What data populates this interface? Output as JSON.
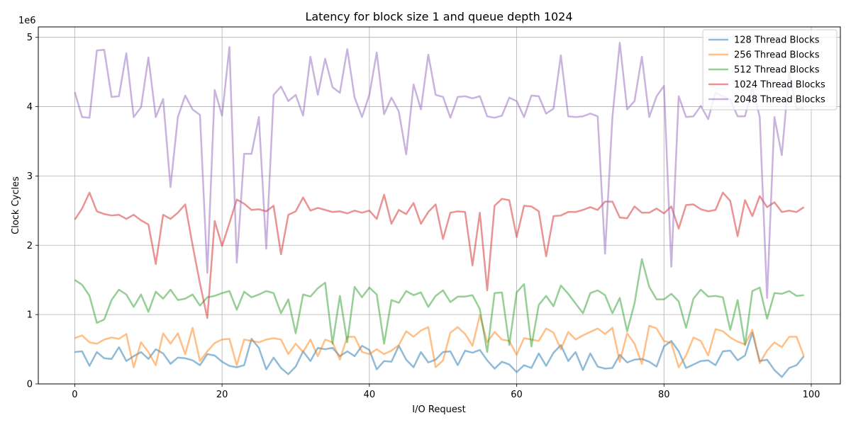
{
  "chart_data": {
    "type": "line",
    "title": "Latency for block size 1 and queue depth 1024",
    "xlabel": "I/O Request",
    "ylabel": "Clock Cycles",
    "y_offset_label": "1e6",
    "y_scale": 1000000,
    "xlim": [
      -4.95,
      103.95
    ],
    "ylim": [
      0,
      5150000
    ],
    "x_ticks": [
      0,
      20,
      40,
      60,
      80,
      100
    ],
    "y_ticks": [
      0,
      1000000,
      2000000,
      3000000,
      4000000,
      5000000
    ],
    "x_tick_labels": [
      "0",
      "20",
      "40",
      "60",
      "80",
      "100"
    ],
    "y_tick_labels": [
      "0",
      "1",
      "2",
      "3",
      "4",
      "5"
    ],
    "grid": true,
    "legend_position": "top-right",
    "series": [
      {
        "name": "128 Thread Blocks",
        "color": "#1f77b4",
        "values": [
          460000,
          470000,
          260000,
          460000,
          370000,
          360000,
          530000,
          330000,
          400000,
          460000,
          360000,
          500000,
          440000,
          290000,
          380000,
          370000,
          340000,
          270000,
          430000,
          410000,
          320000,
          260000,
          240000,
          270000,
          650000,
          520000,
          210000,
          380000,
          230000,
          140000,
          250000,
          470000,
          330000,
          520000,
          500000,
          520000,
          400000,
          470000,
          400000,
          550000,
          490000,
          210000,
          330000,
          320000,
          550000,
          350000,
          240000,
          460000,
          310000,
          350000,
          460000,
          470000,
          270000,
          480000,
          450000,
          490000,
          340000,
          220000,
          320000,
          280000,
          170000,
          270000,
          230000,
          440000,
          260000,
          450000,
          560000,
          330000,
          460000,
          200000,
          440000,
          250000,
          220000,
          230000,
          420000,
          310000,
          350000,
          360000,
          320000,
          250000,
          540000,
          620000,
          470000,
          230000,
          280000,
          330000,
          340000,
          270000,
          470000,
          480000,
          340000,
          410000,
          740000,
          330000,
          350000,
          200000,
          100000,
          230000,
          270000,
          400000
        ]
      },
      {
        "name": "256 Thread Blocks",
        "color": "#ff7f0e",
        "values": [
          660000,
          700000,
          600000,
          580000,
          640000,
          670000,
          650000,
          720000,
          240000,
          600000,
          460000,
          270000,
          730000,
          580000,
          730000,
          430000,
          810000,
          330000,
          470000,
          590000,
          640000,
          650000,
          270000,
          640000,
          620000,
          600000,
          640000,
          660000,
          640000,
          430000,
          580000,
          460000,
          640000,
          400000,
          640000,
          600000,
          350000,
          680000,
          680000,
          460000,
          430000,
          500000,
          430000,
          480000,
          560000,
          760000,
          680000,
          770000,
          820000,
          240000,
          340000,
          740000,
          820000,
          720000,
          550000,
          990000,
          600000,
          750000,
          640000,
          620000,
          420000,
          660000,
          640000,
          620000,
          800000,
          740000,
          500000,
          750000,
          640000,
          700000,
          750000,
          800000,
          720000,
          810000,
          320000,
          730000,
          580000,
          290000,
          840000,
          800000,
          620000,
          590000,
          240000,
          410000,
          670000,
          620000,
          410000,
          790000,
          760000,
          670000,
          610000,
          570000,
          780000,
          300000,
          480000,
          600000,
          530000,
          680000,
          680000,
          400000
        ]
      },
      {
        "name": "512 Thread Blocks",
        "color": "#2ca02c",
        "values": [
          1500000,
          1430000,
          1270000,
          880000,
          930000,
          1210000,
          1360000,
          1290000,
          1110000,
          1290000,
          1040000,
          1330000,
          1230000,
          1360000,
          1210000,
          1230000,
          1290000,
          1130000,
          1250000,
          1270000,
          1310000,
          1340000,
          1070000,
          1330000,
          1250000,
          1290000,
          1340000,
          1310000,
          1020000,
          1220000,
          730000,
          1290000,
          1260000,
          1380000,
          1460000,
          580000,
          1270000,
          600000,
          1400000,
          1250000,
          1390000,
          1290000,
          580000,
          1210000,
          1170000,
          1340000,
          1280000,
          1320000,
          1110000,
          1270000,
          1350000,
          1180000,
          1260000,
          1260000,
          1280000,
          1080000,
          460000,
          1310000,
          1320000,
          560000,
          1320000,
          1440000,
          540000,
          1140000,
          1270000,
          1120000,
          1420000,
          1300000,
          1160000,
          1020000,
          1310000,
          1350000,
          1280000,
          1020000,
          1240000,
          760000,
          1160000,
          1800000,
          1400000,
          1220000,
          1220000,
          1300000,
          1190000,
          810000,
          1230000,
          1360000,
          1260000,
          1270000,
          1250000,
          780000,
          1210000,
          560000,
          1340000,
          1390000,
          940000,
          1310000,
          1300000,
          1340000,
          1270000,
          1280000
        ]
      },
      {
        "name": "1024 Thread Blocks",
        "color": "#d62728",
        "values": [
          2370000,
          2530000,
          2760000,
          2490000,
          2450000,
          2430000,
          2440000,
          2380000,
          2440000,
          2360000,
          2300000,
          1730000,
          2440000,
          2380000,
          2470000,
          2590000,
          2000000,
          1450000,
          950000,
          2350000,
          1990000,
          2320000,
          2660000,
          2600000,
          2510000,
          2520000,
          2490000,
          2570000,
          1870000,
          2440000,
          2490000,
          2690000,
          2500000,
          2540000,
          2510000,
          2480000,
          2490000,
          2460000,
          2500000,
          2470000,
          2500000,
          2380000,
          2730000,
          2310000,
          2510000,
          2450000,
          2610000,
          2310000,
          2480000,
          2590000,
          2090000,
          2470000,
          2490000,
          2480000,
          1710000,
          2470000,
          1350000,
          2570000,
          2670000,
          2650000,
          2120000,
          2570000,
          2560000,
          2490000,
          1840000,
          2420000,
          2430000,
          2480000,
          2480000,
          2510000,
          2550000,
          2510000,
          2630000,
          2630000,
          2400000,
          2390000,
          2560000,
          2470000,
          2470000,
          2530000,
          2460000,
          2560000,
          2240000,
          2580000,
          2590000,
          2520000,
          2490000,
          2510000,
          2760000,
          2640000,
          2130000,
          2650000,
          2420000,
          2710000,
          2550000,
          2620000,
          2480000,
          2500000,
          2480000,
          2550000
        ]
      },
      {
        "name": "2048 Thread Blocks",
        "color": "#9467bd",
        "values": [
          4210000,
          3850000,
          3840000,
          4810000,
          4820000,
          4140000,
          4150000,
          4770000,
          3850000,
          3990000,
          4710000,
          3850000,
          4110000,
          2840000,
          3850000,
          4160000,
          3960000,
          3880000,
          1600000,
          4240000,
          3870000,
          4860000,
          1750000,
          3320000,
          3320000,
          3850000,
          1950000,
          4170000,
          4290000,
          4080000,
          4170000,
          3870000,
          4720000,
          4170000,
          4690000,
          4280000,
          4200000,
          4830000,
          4130000,
          3850000,
          4170000,
          4780000,
          3890000,
          4130000,
          3930000,
          3310000,
          4320000,
          3960000,
          4750000,
          4170000,
          4140000,
          3840000,
          4140000,
          4150000,
          4120000,
          4150000,
          3860000,
          3840000,
          3870000,
          4130000,
          4080000,
          3850000,
          4160000,
          4150000,
          3900000,
          3970000,
          4740000,
          3860000,
          3850000,
          3860000,
          3900000,
          3860000,
          1880000,
          3850000,
          4920000,
          3960000,
          4080000,
          4720000,
          3850000,
          4150000,
          4300000,
          1690000,
          4150000,
          3850000,
          3860000,
          4010000,
          3820000,
          4200000,
          4150000,
          4100000,
          3860000,
          3860000,
          4280000,
          3850000,
          1240000,
          3850000,
          3300000,
          4500000,
          3970000,
          3980000
        ]
      }
    ]
  }
}
